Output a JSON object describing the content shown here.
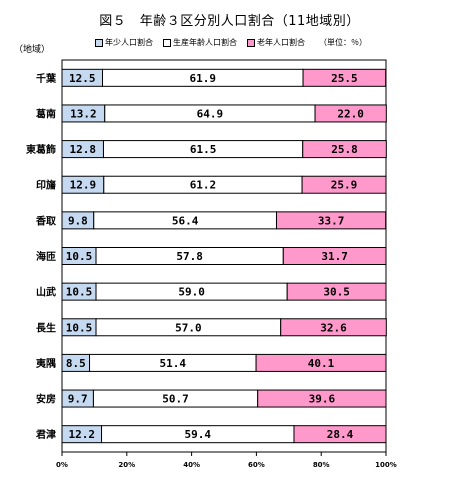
{
  "chart_data": {
    "type": "bar",
    "stacked": true,
    "orientation": "horizontal",
    "normalized": true,
    "title": "図５　年齢３区分別人口割合（11地域別）",
    "category_axis_label": "（地域）",
    "unit_note": "（単位：％）",
    "legend_placement": "top",
    "categories": [
      "千葉",
      "葛南",
      "東葛飾",
      "印旛",
      "香取",
      "海匝",
      "山武",
      "長生",
      "夷隅",
      "安房",
      "君津"
    ],
    "series": [
      {
        "name": "年少人口割合",
        "color": "#c5d9f1",
        "values": [
          12.5,
          13.2,
          12.8,
          12.9,
          9.8,
          10.5,
          10.5,
          10.5,
          8.5,
          9.7,
          12.2
        ],
        "labels": [
          "12.5",
          "13.2",
          "12.8",
          "12.9",
          "9.8",
          "10.5",
          "10.5",
          "10.5",
          "8.5",
          "9.7",
          "12.2"
        ]
      },
      {
        "name": "生産年齢人口割合",
        "color": "#ffffff",
        "values": [
          61.9,
          64.9,
          61.5,
          61.2,
          56.4,
          57.8,
          59.0,
          57.0,
          51.4,
          50.7,
          59.4
        ],
        "labels": [
          "61.9",
          "64.9",
          "61.5",
          "61.2",
          "56.4",
          "57.8",
          "59.0",
          "57.0",
          "51.4",
          "50.7",
          "59.4"
        ]
      },
      {
        "name": "老年人口割合",
        "color": "#ff99cc",
        "values": [
          25.5,
          22.0,
          25.8,
          25.9,
          33.7,
          31.7,
          30.5,
          32.6,
          40.1,
          39.6,
          28.4
        ],
        "labels": [
          "25.5",
          "22.0",
          "25.8",
          "25.9",
          "33.7",
          "31.7",
          "30.5",
          "32.6",
          "40.1",
          "39.6",
          "28.4"
        ]
      }
    ],
    "x_ticks": [
      "0%",
      "20%",
      "40%",
      "60%",
      "80%",
      "100%"
    ],
    "xlim": [
      0,
      100
    ],
    "grid": false
  }
}
